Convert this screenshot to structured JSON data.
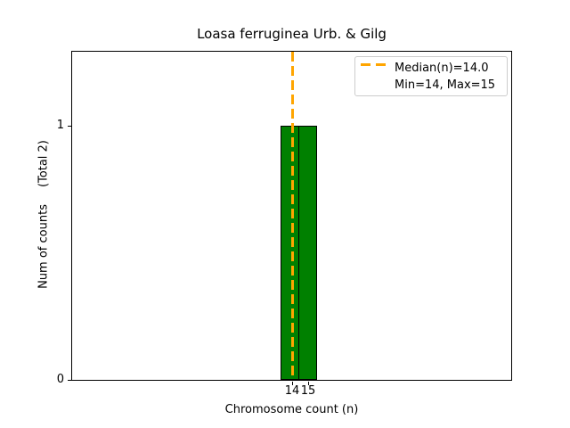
{
  "title": "Loasa ferruginea Urb. & Gilg",
  "axes": {
    "xlabel": "Chromosome count (n)",
    "ylabel": "Num of counts",
    "ylabel_total": "(Total 2)",
    "xtick_labels": [
      "14",
      "15"
    ],
    "ytick_labels": [
      "0",
      "1"
    ]
  },
  "legend": {
    "median_label": "Median(n)=14.0",
    "minmax_label": "Min=14, Max=15",
    "dash_icon_color": "#FFA500"
  },
  "chart_data": {
    "type": "bar",
    "categories": [
      14,
      15
    ],
    "values": [
      1,
      1
    ],
    "title": "Loasa ferruginea Urb. & Gilg",
    "xlabel": "Chromosome count (n)",
    "ylabel": "Num of counts (Total 2)",
    "total_counts": 2,
    "median": 14.0,
    "min": 14,
    "max": 15,
    "ylim": [
      0,
      1.3
    ],
    "yticks": [
      0,
      1
    ],
    "grid": false,
    "legend_position": "upper right",
    "bar_color": "#008000",
    "bar_edge_color": "#000000",
    "median_line_color": "#FFA500",
    "median_line_style": "dashed"
  }
}
